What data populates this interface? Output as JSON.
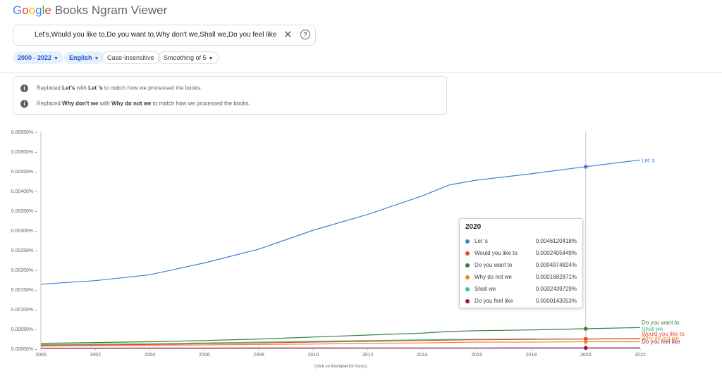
{
  "app": {
    "logo_google": "Google",
    "logo_rest": "Books Ngram Viewer"
  },
  "search": {
    "query": "Let's,Would you like to,Do you want to,Why don't we,Shall we,Do you feel like",
    "clear_icon": "close-icon",
    "help_icon": "help-icon"
  },
  "filters": {
    "years": "2000 - 2022",
    "language": "English",
    "case": "Case-Insensitive",
    "smoothing": "Smoothing of 5"
  },
  "notices": [
    {
      "pre": "Replaced ",
      "from": "Let's",
      "mid": " with ",
      "to": "Let 's",
      "post": " to match how we processed the books."
    },
    {
      "pre": "Replaced ",
      "from": "Why don't we",
      "mid": " with ",
      "to": "Why do not we",
      "post": " to match how we processed the books."
    }
  ],
  "footer_hint": "(click on line/label for focus)",
  "tooltip": {
    "year": "2020",
    "rows": [
      {
        "name": "Let 's",
        "value": "0.0046120418%",
        "color": "#3d7fd8"
      },
      {
        "name": "Would you like to",
        "value": "0.0002405449%",
        "color": "#e8453c"
      },
      {
        "name": "Do you want to",
        "value": "0.0004974824%",
        "color": "#3a7d3a"
      },
      {
        "name": "Why do not we",
        "value": "0.0001682871%",
        "color": "#f5861f"
      },
      {
        "name": "Shall we",
        "value": "0.0002439729%",
        "color": "#34c38f"
      },
      {
        "name": "Do you feel like",
        "value": "0.0000143053%",
        "color": "#8b1c4a"
      }
    ]
  },
  "chart_data": {
    "type": "line",
    "x": [
      2000,
      2002,
      2004,
      2006,
      2008,
      2010,
      2012,
      2014,
      2015,
      2016,
      2018,
      2020,
      2022
    ],
    "xticks": [
      2000,
      2002,
      2004,
      2006,
      2008,
      2010,
      2012,
      2014,
      2016,
      2018,
      2020,
      2022
    ],
    "xlim": [
      2000,
      2022
    ],
    "ylim": [
      0,
      0.0055
    ],
    "yticks": [
      "0.00000%",
      "0.00050%",
      "0.00100%",
      "0.00150%",
      "0.00200%",
      "0.00250%",
      "0.00300%",
      "0.00350%",
      "0.00400%",
      "0.00450%",
      "0.00500%",
      "0.00550%"
    ],
    "ytick_values": [
      0,
      0.0005,
      0.001,
      0.0015,
      0.002,
      0.0025,
      0.003,
      0.0035,
      0.004,
      0.0045,
      0.005,
      0.0055
    ],
    "highlight_x": 2020,
    "grid": false,
    "series": [
      {
        "name": "Let 's",
        "color": "#3d7fd8",
        "values": [
          0.00163,
          0.00172,
          0.00187,
          0.00217,
          0.00252,
          0.003,
          0.0034,
          0.00387,
          0.00415,
          0.00427,
          0.00443,
          0.00461,
          0.00478
        ]
      },
      {
        "name": "Do you want to",
        "color": "#3a7d3a",
        "values": [
          0.00013,
          0.00015,
          0.00017,
          0.0002,
          0.00024,
          0.00029,
          0.00034,
          0.00039,
          0.00043,
          0.00045,
          0.00047,
          0.0005,
          0.00053
        ]
      },
      {
        "name": "Shall we",
        "color": "#34c38f",
        "values": [
          0.0001,
          0.00011,
          0.00012,
          0.00014,
          0.00016,
          0.00018,
          0.0002,
          0.00022,
          0.00023,
          0.00023,
          0.00024,
          0.00024,
          0.00025
        ]
      },
      {
        "name": "Would you like to",
        "color": "#e8453c",
        "values": [
          8e-05,
          9e-05,
          0.0001,
          0.00012,
          0.00014,
          0.00016,
          0.00018,
          0.0002,
          0.00021,
          0.00022,
          0.00023,
          0.00024,
          0.00025
        ]
      },
      {
        "name": "Why do not we",
        "color": "#f5861f",
        "values": [
          6e-05,
          7e-05,
          8e-05,
          9e-05,
          0.0001,
          0.00011,
          0.00013,
          0.00014,
          0.00015,
          0.00016,
          0.00016,
          0.00017,
          0.00017
        ]
      },
      {
        "name": "Do you feel like",
        "color": "#8b1c4a",
        "values": [
          8e-06,
          8e-06,
          9e-06,
          9e-06,
          1e-05,
          1.1e-05,
          1.2e-05,
          1.2e-05,
          1.3e-05,
          1.3e-05,
          1.4e-05,
          1.4e-05,
          1.5e-05
        ]
      }
    ]
  }
}
